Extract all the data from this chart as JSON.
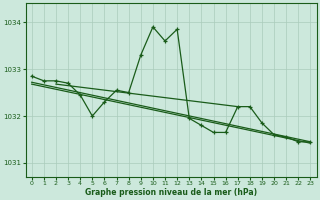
{
  "title": "Graphe pression niveau de la mer (hPa)",
  "bg_color": "#cce8dc",
  "plot_bg_color": "#cce8dc",
  "line_color": "#1a5c1a",
  "grid_color": "#aaccbb",
  "xlabel_color": "#1a5c1a",
  "ylim": [
    1030.7,
    1034.4
  ],
  "xlim": [
    -0.5,
    23.5
  ],
  "yticks": [
    1031,
    1032,
    1033,
    1034
  ],
  "xticks": [
    0,
    1,
    2,
    3,
    4,
    5,
    6,
    7,
    8,
    9,
    10,
    11,
    12,
    13,
    14,
    15,
    16,
    17,
    18,
    19,
    20,
    21,
    22,
    23
  ],
  "series1_x": [
    0,
    1,
    2,
    3,
    4,
    5,
    6,
    7,
    8,
    9,
    10,
    11,
    12,
    13,
    14,
    15,
    16,
    17,
    18,
    19,
    20,
    21,
    22,
    23
  ],
  "series1_y": [
    1032.85,
    1032.75,
    1032.75,
    1032.7,
    1032.45,
    1032.0,
    1032.3,
    1032.55,
    1032.5,
    1033.3,
    1033.9,
    1033.6,
    1033.85,
    1031.95,
    1031.8,
    1031.65,
    1031.65,
    1032.2,
    1032.2,
    1031.85,
    1031.6,
    1031.55,
    1031.45,
    1031.45
  ],
  "trend1_x": [
    0,
    23
  ],
  "trend1_y": [
    1032.72,
    1031.45
  ],
  "trend2_x": [
    0,
    23
  ],
  "trend2_y": [
    1032.68,
    1031.42
  ],
  "trend3_x": [
    2,
    17
  ],
  "trend3_y": [
    1032.68,
    1032.2
  ]
}
